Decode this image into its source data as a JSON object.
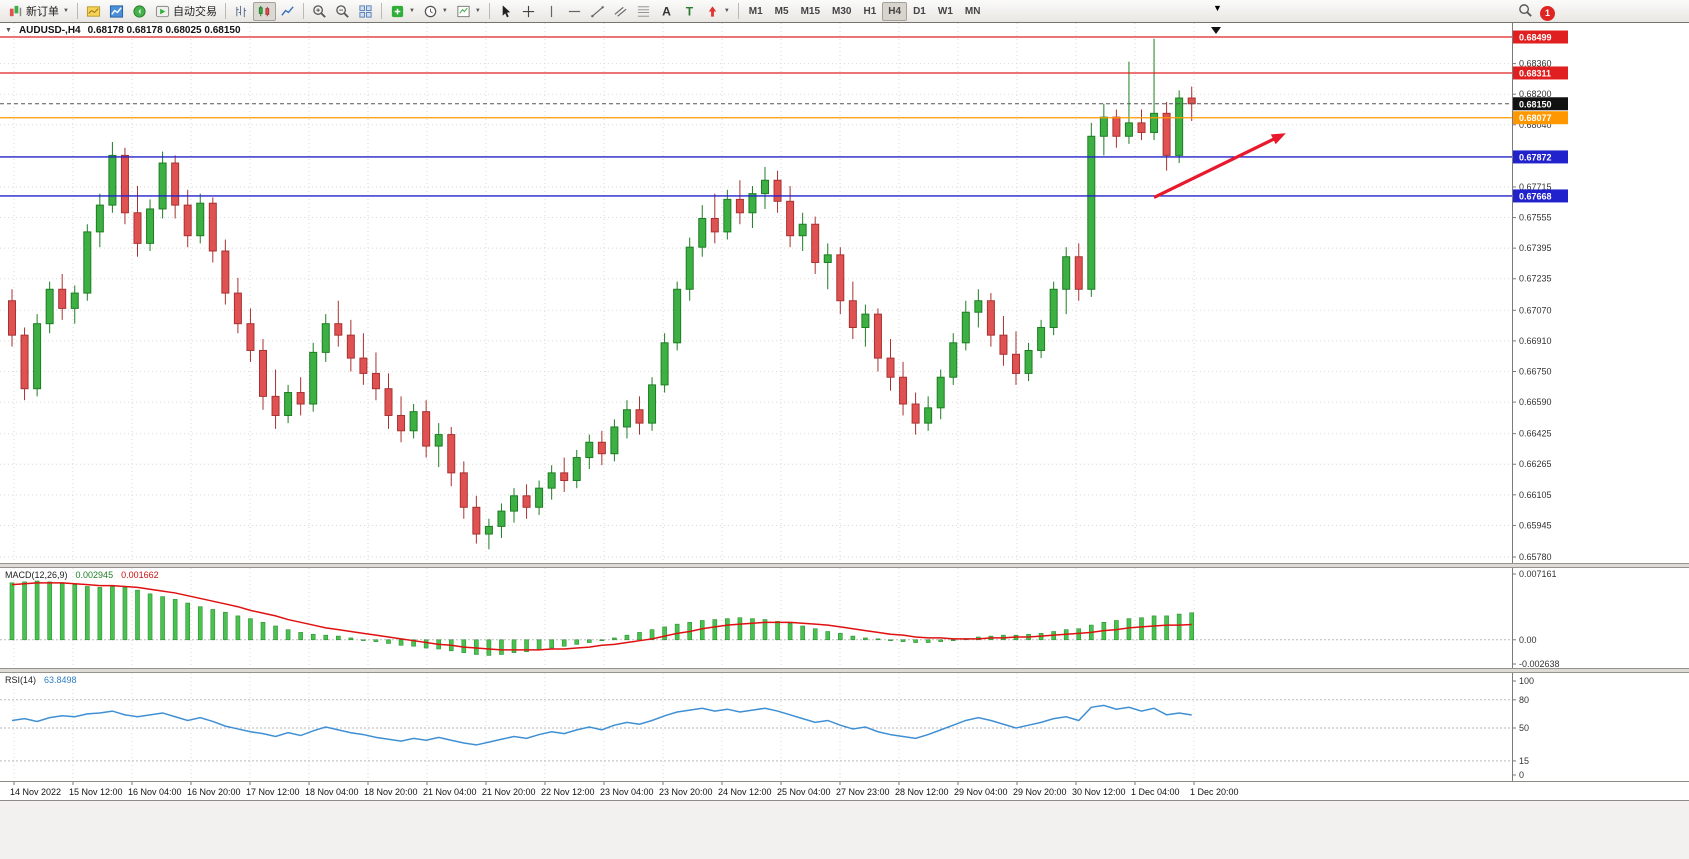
{
  "toolbar": {
    "new_order_label": "新订单",
    "autotrading_label": "自动交易",
    "timeframes": [
      "M1",
      "M5",
      "M15",
      "M30",
      "H1",
      "H4",
      "D1",
      "W1",
      "MN"
    ],
    "active_timeframe": "H4",
    "notification_count": "1",
    "items": [
      {
        "name": "new-order-button",
        "icon": "new-order",
        "label": "新订单",
        "dropdown": true
      },
      {
        "sep": true
      },
      {
        "name": "charts-button",
        "icon": "charts"
      },
      {
        "name": "market-watch-button",
        "icon": "market"
      },
      {
        "name": "sound-button",
        "icon": "sound"
      },
      {
        "name": "autotrading-button",
        "icon": "autotrading",
        "label": "自动交易"
      },
      {
        "sep": true
      },
      {
        "name": "bar-chart-button",
        "icon": "bars"
      },
      {
        "name": "candlestick-button",
        "icon": "candles",
        "active": true
      },
      {
        "name": "line-chart-button",
        "icon": "linechart"
      },
      {
        "sep": true
      },
      {
        "name": "zoom-in-button",
        "icon": "zoom-in"
      },
      {
        "name": "zoom-out-button",
        "icon": "zoom-out"
      },
      {
        "name": "tile-windows-button",
        "icon": "tile"
      },
      {
        "sep": true
      },
      {
        "name": "indicators-button",
        "icon": "indicators",
        "dropdown": true
      },
      {
        "name": "periods-button",
        "icon": "clock",
        "dropdown": true
      },
      {
        "name": "templates-button",
        "icon": "template",
        "dropdown": true
      },
      {
        "sep": true
      },
      {
        "name": "cursor-button",
        "icon": "cursor"
      },
      {
        "name": "crosshair-button",
        "icon": "crosshair"
      },
      {
        "name": "vertical-line-button",
        "icon": "vline"
      },
      {
        "name": "horizontal-line-button",
        "icon": "hline"
      },
      {
        "name": "trendline-button",
        "icon": "trendline"
      },
      {
        "name": "channel-button",
        "icon": "channel"
      },
      {
        "name": "fibonacci-button",
        "icon": "fibonacci"
      },
      {
        "name": "text-button",
        "icon": "text"
      },
      {
        "name": "text-label-button",
        "icon": "label"
      },
      {
        "name": "arrows-button",
        "icon": "arrows",
        "dropdown": true
      },
      {
        "sep": true
      }
    ]
  },
  "colors": {
    "up_fill": "#3cb043",
    "up_stroke": "#1e7d24",
    "down_fill": "#e05252",
    "down_stroke": "#a83232",
    "grid": "#dadada",
    "axis_text": "#333333",
    "current_price_box": "#111111",
    "macd_bar_fill": "#49c24f",
    "macd_bar_stroke": "#2e8f35",
    "macd_signal": "#e01010",
    "rsi_line": "#3f8fd4",
    "arrow": "#e8192c"
  },
  "chart_data": [
    {
      "type": "candlestick",
      "symbol_title": "AUDUSD-,H4",
      "ohlc_line": "0.68178 0.68178 0.68025 0.68150",
      "price_min": 0.6578,
      "price_max": 0.6852,
      "axis_labels": [
        "0.68360",
        "0.68200",
        "0.68040",
        "0.67715",
        "0.67555",
        "0.67395",
        "0.67235",
        "0.67070",
        "0.66910",
        "0.66750",
        "0.66590",
        "0.66425",
        "0.66265",
        "0.66105",
        "0.65945",
        "0.65780"
      ],
      "hlines": [
        {
          "price": 0.68499,
          "label": "0.68499",
          "color": "#e02020"
        },
        {
          "price": 0.68311,
          "label": "0.68311",
          "color": "#e02020"
        },
        {
          "price": 0.68077,
          "label": "0.68077",
          "color": "#ff9800"
        },
        {
          "price": 0.67872,
          "label": "0.67872",
          "color": "#2222cc"
        },
        {
          "price": 0.67668,
          "label": "0.67668",
          "color": "#2222cc"
        }
      ],
      "current_price": {
        "price": 0.6815,
        "label": "0.68150"
      },
      "trend_arrow": {
        "from": {
          "index": 91,
          "price": 0.6766
        },
        "to": {
          "index": 101,
          "price": 0.6798
        },
        "color": "#e8192c"
      },
      "dates": [
        "14 Nov 2022",
        "15 Nov 12:00",
        "16 Nov 04:00",
        "16 Nov 20:00",
        "17 Nov 12:00",
        "18 Nov 04:00",
        "18 Nov 20:00",
        "21 Nov 04:00",
        "21 Nov 20:00",
        "22 Nov 12:00",
        "23 Nov 04:00",
        "23 Nov 20:00",
        "24 Nov 12:00",
        "25 Nov 04:00",
        "27 Nov 23:00",
        "28 Nov 12:00",
        "29 Nov 04:00",
        "29 Nov 20:00",
        "30 Nov 12:00",
        "1 Dec 04:00",
        "1 Dec 20:00"
      ],
      "candles": [
        [
          0.6712,
          0.6718,
          0.6688,
          0.6694
        ],
        [
          0.6694,
          0.6698,
          0.666,
          0.6666
        ],
        [
          0.6666,
          0.6705,
          0.6662,
          0.67
        ],
        [
          0.67,
          0.6722,
          0.6695,
          0.6718
        ],
        [
          0.6718,
          0.6726,
          0.6702,
          0.6708
        ],
        [
          0.6708,
          0.672,
          0.67,
          0.6716
        ],
        [
          0.6716,
          0.6752,
          0.6712,
          0.6748
        ],
        [
          0.6748,
          0.6768,
          0.674,
          0.6762
        ],
        [
          0.6762,
          0.6795,
          0.6758,
          0.6788
        ],
        [
          0.6788,
          0.6792,
          0.6752,
          0.6758
        ],
        [
          0.6758,
          0.6772,
          0.6735,
          0.6742
        ],
        [
          0.6742,
          0.6765,
          0.6738,
          0.676
        ],
        [
          0.676,
          0.679,
          0.6755,
          0.6784
        ],
        [
          0.6784,
          0.6788,
          0.6755,
          0.6762
        ],
        [
          0.6762,
          0.677,
          0.674,
          0.6746
        ],
        [
          0.6746,
          0.6768,
          0.6742,
          0.6763
        ],
        [
          0.6763,
          0.6766,
          0.6732,
          0.6738
        ],
        [
          0.6738,
          0.6744,
          0.671,
          0.6716
        ],
        [
          0.6716,
          0.6724,
          0.6695,
          0.67
        ],
        [
          0.67,
          0.6708,
          0.668,
          0.6686
        ],
        [
          0.6686,
          0.6692,
          0.6655,
          0.6662
        ],
        [
          0.6662,
          0.6676,
          0.6645,
          0.6652
        ],
        [
          0.6652,
          0.6668,
          0.6648,
          0.6664
        ],
        [
          0.6664,
          0.6672,
          0.6652,
          0.6658
        ],
        [
          0.6658,
          0.669,
          0.6654,
          0.6685
        ],
        [
          0.6685,
          0.6705,
          0.668,
          0.67
        ],
        [
          0.67,
          0.6712,
          0.6688,
          0.6694
        ],
        [
          0.6694,
          0.6702,
          0.6675,
          0.6682
        ],
        [
          0.6682,
          0.6695,
          0.6668,
          0.6674
        ],
        [
          0.6674,
          0.6685,
          0.666,
          0.6666
        ],
        [
          0.6666,
          0.6674,
          0.6645,
          0.6652
        ],
        [
          0.6652,
          0.6662,
          0.6638,
          0.6644
        ],
        [
          0.6644,
          0.6658,
          0.664,
          0.6654
        ],
        [
          0.6654,
          0.666,
          0.663,
          0.6636
        ],
        [
          0.6636,
          0.6648,
          0.6625,
          0.6642
        ],
        [
          0.6642,
          0.6646,
          0.6615,
          0.6622
        ],
        [
          0.6622,
          0.6628,
          0.6598,
          0.6604
        ],
        [
          0.6604,
          0.661,
          0.6585,
          0.659
        ],
        [
          0.659,
          0.6598,
          0.6582,
          0.6594
        ],
        [
          0.6594,
          0.6606,
          0.6588,
          0.6602
        ],
        [
          0.6602,
          0.6614,
          0.6596,
          0.661
        ],
        [
          0.661,
          0.6616,
          0.6598,
          0.6604
        ],
        [
          0.6604,
          0.6618,
          0.66,
          0.6614
        ],
        [
          0.6614,
          0.6626,
          0.6608,
          0.6622
        ],
        [
          0.6622,
          0.663,
          0.6612,
          0.6618
        ],
        [
          0.6618,
          0.6634,
          0.6614,
          0.663
        ],
        [
          0.663,
          0.6642,
          0.6624,
          0.6638
        ],
        [
          0.6638,
          0.6644,
          0.6626,
          0.6632
        ],
        [
          0.6632,
          0.665,
          0.6628,
          0.6646
        ],
        [
          0.6646,
          0.666,
          0.664,
          0.6655
        ],
        [
          0.6655,
          0.6662,
          0.6642,
          0.6648
        ],
        [
          0.6648,
          0.6672,
          0.6644,
          0.6668
        ],
        [
          0.6668,
          0.6695,
          0.6664,
          0.669
        ],
        [
          0.669,
          0.6722,
          0.6686,
          0.6718
        ],
        [
          0.6718,
          0.6745,
          0.6712,
          0.674
        ],
        [
          0.674,
          0.6762,
          0.6735,
          0.6755
        ],
        [
          0.6755,
          0.6768,
          0.6742,
          0.6748
        ],
        [
          0.6748,
          0.677,
          0.6744,
          0.6765
        ],
        [
          0.6765,
          0.6775,
          0.6752,
          0.6758
        ],
        [
          0.6758,
          0.6772,
          0.675,
          0.6768
        ],
        [
          0.6768,
          0.6782,
          0.676,
          0.6775
        ],
        [
          0.6775,
          0.678,
          0.6758,
          0.6764
        ],
        [
          0.6764,
          0.6772,
          0.674,
          0.6746
        ],
        [
          0.6746,
          0.6758,
          0.6738,
          0.6752
        ],
        [
          0.6752,
          0.6756,
          0.6726,
          0.6732
        ],
        [
          0.6732,
          0.6742,
          0.6718,
          0.6736
        ],
        [
          0.6736,
          0.674,
          0.6705,
          0.6712
        ],
        [
          0.6712,
          0.6722,
          0.6692,
          0.6698
        ],
        [
          0.6698,
          0.671,
          0.6688,
          0.6705
        ],
        [
          0.6705,
          0.6708,
          0.6675,
          0.6682
        ],
        [
          0.6682,
          0.6692,
          0.6665,
          0.6672
        ],
        [
          0.6672,
          0.668,
          0.6652,
          0.6658
        ],
        [
          0.6658,
          0.6664,
          0.6642,
          0.6648
        ],
        [
          0.6648,
          0.6662,
          0.6644,
          0.6656
        ],
        [
          0.6656,
          0.6676,
          0.665,
          0.6672
        ],
        [
          0.6672,
          0.6695,
          0.6668,
          0.669
        ],
        [
          0.669,
          0.6712,
          0.6686,
          0.6706
        ],
        [
          0.6706,
          0.6718,
          0.6698,
          0.6712
        ],
        [
          0.6712,
          0.6716,
          0.6688,
          0.6694
        ],
        [
          0.6694,
          0.6704,
          0.6678,
          0.6684
        ],
        [
          0.6684,
          0.6696,
          0.6668,
          0.6674
        ],
        [
          0.6674,
          0.669,
          0.667,
          0.6686
        ],
        [
          0.6686,
          0.6702,
          0.6682,
          0.6698
        ],
        [
          0.6698,
          0.6722,
          0.6694,
          0.6718
        ],
        [
          0.6718,
          0.674,
          0.6705,
          0.6735
        ],
        [
          0.6735,
          0.6742,
          0.6712,
          0.6718
        ],
        [
          0.6718,
          0.6805,
          0.6714,
          0.6798
        ],
        [
          0.6798,
          0.6815,
          0.6788,
          0.6808
        ],
        [
          0.6808,
          0.6812,
          0.6792,
          0.6798
        ],
        [
          0.6798,
          0.6837,
          0.6794,
          0.6805
        ],
        [
          0.6805,
          0.6812,
          0.6796,
          0.68
        ],
        [
          0.68,
          0.6849,
          0.6796,
          0.681
        ],
        [
          0.681,
          0.6816,
          0.678,
          0.6788
        ],
        [
          0.6788,
          0.6822,
          0.6784,
          0.6818
        ],
        [
          0.6818,
          0.6824,
          0.6806,
          0.6815
        ]
      ]
    },
    {
      "type": "bar",
      "name_label": "MACD(12,26,9)",
      "value_main": "0.002945",
      "value_signal": "0.001662",
      "vmax": 0.007161,
      "vmin": -0.002638,
      "axis_labels": [
        {
          "v": 0.007161,
          "t": "0.007161"
        },
        {
          "v": 0,
          "t": "0.00"
        },
        {
          "v": -0.002638,
          "t": "-0.002638"
        }
      ],
      "histogram": [
        0.0062,
        0.0063,
        0.0064,
        0.0063,
        0.0061,
        0.006,
        0.0058,
        0.0057,
        0.0058,
        0.0057,
        0.0054,
        0.005,
        0.0047,
        0.0044,
        0.004,
        0.0036,
        0.0033,
        0.003,
        0.0026,
        0.0023,
        0.0019,
        0.0015,
        0.0011,
        0.0008,
        0.0006,
        0.0005,
        0.0004,
        0.0002,
        0.0,
        -0.0002,
        -0.0004,
        -0.0006,
        -0.0007,
        -0.0009,
        -0.001,
        -0.0012,
        -0.0014,
        -0.0016,
        -0.0017,
        -0.0016,
        -0.0014,
        -0.0013,
        -0.0011,
        -0.0009,
        -0.0007,
        -0.0005,
        -0.0003,
        -0.0001,
        0.0002,
        0.0005,
        0.0008,
        0.0011,
        0.0014,
        0.0017,
        0.0019,
        0.0021,
        0.0022,
        0.0023,
        0.0024,
        0.0023,
        0.0022,
        0.002,
        0.0018,
        0.0015,
        0.0012,
        0.0009,
        0.0007,
        0.0004,
        0.0002,
        0.0001,
        -0.0001,
        -0.0002,
        -0.0003,
        -0.0003,
        -0.0002,
        -0.0001,
        0.0001,
        0.0003,
        0.0004,
        0.0005,
        0.0005,
        0.0006,
        0.0007,
        0.0009,
        0.0011,
        0.0012,
        0.0016,
        0.0019,
        0.0021,
        0.0023,
        0.0024,
        0.0026,
        0.0026,
        0.0028,
        0.00294
      ],
      "signal": [
        0.006,
        0.0061,
        0.0062,
        0.0062,
        0.0062,
        0.0061,
        0.006,
        0.0059,
        0.0059,
        0.0058,
        0.0057,
        0.0055,
        0.0053,
        0.0051,
        0.0048,
        0.0045,
        0.0042,
        0.0039,
        0.0036,
        0.0032,
        0.0029,
        0.0026,
        0.0022,
        0.0019,
        0.0016,
        0.0013,
        0.0011,
        0.0009,
        0.0007,
        0.0005,
        0.0003,
        0.0001,
        -0.0001,
        -0.0003,
        -0.0005,
        -0.0006,
        -0.0008,
        -0.0009,
        -0.001,
        -0.0011,
        -0.0011,
        -0.0011,
        -0.0011,
        -0.001,
        -0.001,
        -0.0009,
        -0.0008,
        -0.0006,
        -0.0005,
        -0.0003,
        -0.0001,
        0.0001,
        0.0004,
        0.0007,
        0.0009,
        0.0012,
        0.0014,
        0.0016,
        0.0017,
        0.0018,
        0.0019,
        0.0019,
        0.0019,
        0.0018,
        0.0017,
        0.0016,
        0.0014,
        0.0012,
        0.001,
        0.0008,
        0.0006,
        0.0005,
        0.0003,
        0.0002,
        0.0002,
        0.0001,
        0.0001,
        0.0001,
        0.0002,
        0.0002,
        0.0003,
        0.0003,
        0.0004,
        0.0005,
        0.0006,
        0.0007,
        0.0008,
        0.001,
        0.0011,
        0.0013,
        0.0014,
        0.0015,
        0.0016,
        0.0016,
        0.00166
      ]
    },
    {
      "type": "line",
      "name_label": "RSI(14)",
      "value": "63.8498",
      "vmin": 0,
      "vmax": 100,
      "levels": [
        80,
        50,
        15
      ],
      "axis_labels": [
        {
          "v": 100,
          "t": "100"
        },
        {
          "v": 80,
          "t": "80"
        },
        {
          "v": 50,
          "t": "50"
        },
        {
          "v": 15,
          "t": "15"
        },
        {
          "v": 0,
          "t": "0"
        }
      ],
      "values": [
        58,
        60,
        57,
        61,
        63,
        62,
        65,
        66,
        68,
        64,
        62,
        64,
        66,
        62,
        58,
        61,
        57,
        52,
        49,
        46,
        44,
        41,
        45,
        42,
        47,
        51,
        48,
        45,
        43,
        40,
        38,
        36,
        39,
        37,
        40,
        37,
        34,
        32,
        35,
        38,
        41,
        39,
        43,
        46,
        44,
        48,
        51,
        48,
        53,
        56,
        54,
        58,
        63,
        67,
        69,
        71,
        68,
        70,
        67,
        69,
        71,
        68,
        64,
        60,
        56,
        58,
        53,
        49,
        51,
        46,
        43,
        41,
        39,
        43,
        48,
        53,
        58,
        61,
        58,
        54,
        50,
        53,
        56,
        60,
        62,
        58,
        72,
        74,
        70,
        72,
        68,
        71,
        64,
        66,
        63.85
      ]
    }
  ]
}
